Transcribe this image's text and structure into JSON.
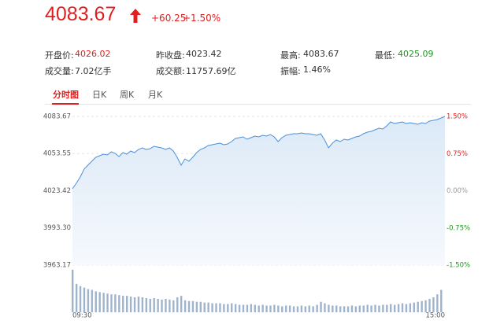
{
  "header": {
    "price": "4083.67",
    "change": "+60.25",
    "change_pct": "+1.50%",
    "stats": [
      {
        "label": "开盘价:",
        "value": "4026.02",
        "color": "#e02020"
      },
      {
        "label": "昨收盘:",
        "value": "4023.42",
        "color": "#333333"
      },
      {
        "label": "最高:",
        "value": "4083.67",
        "color": "#333333"
      },
      {
        "label": "最低:",
        "value": "4025.09",
        "color": "#1a9a1a"
      },
      {
        "label": "成交量:",
        "value": "7.02亿手",
        "color": "#333333"
      },
      {
        "label": "成交额:",
        "value": "11757.69亿",
        "color": "#333333"
      },
      {
        "label": "振幅:",
        "value": "1.46%",
        "color": "#333333"
      }
    ],
    "tabs": [
      "分时图",
      "日K",
      "周K",
      "月K"
    ]
  },
  "chart_data": {
    "type": "line",
    "series": [
      {
        "color": "#4a90d9",
        "values": [
          4025.01,
          4029.47,
          4034.57,
          4040.95,
          4044.14,
          4047.33,
          4050.51,
          4051.79,
          4053.07,
          4052.43,
          4054.98,
          4053.7,
          4051.15,
          4054.34,
          4053.07,
          4055.62,
          4054.34,
          4056.89,
          4058.17,
          4056.89,
          4057.53,
          4059.44,
          4058.8,
          4058.17,
          4056.89,
          4058.17,
          4055.62,
          4050.51,
          4044.14,
          4049.24,
          4047.33,
          4050.51,
          4054.34,
          4056.89,
          4058.17,
          4060.08,
          4060.72,
          4061.35,
          4061.99,
          4060.72,
          4061.35,
          4063.27,
          4065.82,
          4066.45,
          4067.09,
          4065.18,
          4066.45,
          4067.73,
          4067.09,
          4068.37,
          4067.73,
          4069.01,
          4067.09,
          4063.27,
          4066.45,
          4068.37,
          4069.01,
          4069.64,
          4069.64,
          4070.28,
          4069.64,
          4069.64,
          4069.01,
          4068.37,
          4069.64,
          4064.54,
          4058.17,
          4061.99,
          4064.54,
          4063.27,
          4065.18,
          4064.54,
          4065.82,
          4067.09,
          4067.73,
          4069.64,
          4070.92,
          4071.56,
          4072.83,
          4074.11,
          4073.47,
          4076.02,
          4079.21,
          4077.93,
          4078.57,
          4079.21,
          4077.93,
          4078.57,
          4077.93,
          4077.29,
          4078.57,
          4077.93,
          4079.84,
          4080.48,
          4081.12,
          4082.39,
          4083.67
        ]
      }
    ],
    "xticks": [
      {
        "value": 0,
        "label": "09:30"
      },
      {
        "value": 96,
        "label": "15:00"
      }
    ],
    "xlim": [
      0,
      96
    ],
    "ylim": [
      3963.17,
      4083.67
    ],
    "yticks": [
      {
        "value": 3963.17,
        "label": "3963.17"
      },
      {
        "value": 3993.3,
        "label": "3993.30"
      },
      {
        "value": 4023.42,
        "label": "4023.42"
      },
      {
        "value": 4053.55,
        "label": "4053.55"
      },
      {
        "value": 4083.67,
        "label": "4083.67"
      }
    ],
    "y2lim": [
      -1.5,
      1.5
    ],
    "y2ticks": [
      {
        "value": -1.5,
        "label": "-1.50%"
      },
      {
        "value": -0.75,
        "label": "-0.75%"
      },
      {
        "value": 0,
        "label": "0.00%"
      },
      {
        "value": 0.75,
        "label": "0.75%"
      },
      {
        "value": 1.5,
        "label": "1.50%"
      }
    ],
    "y2tick_colors": [
      "#1a9a1a",
      "#1a9a1a",
      "#999999",
      "#e02020",
      "#e02020"
    ],
    "grid": true,
    "volume": {
      "color": "#9fb4cc",
      "ylim": [
        0,
        60
      ],
      "values": [
        57,
        38,
        35,
        33,
        31,
        30,
        28,
        27,
        26,
        25,
        24,
        24,
        23,
        22,
        22,
        21,
        20,
        21,
        20,
        19,
        18,
        19,
        18,
        17,
        18,
        17,
        16,
        20,
        22,
        16,
        15,
        15,
        14,
        14,
        13,
        13,
        12,
        12,
        12,
        11,
        11,
        12,
        11,
        10,
        10,
        10,
        11,
        10,
        9,
        10,
        9,
        9,
        10,
        9,
        8,
        9,
        9,
        8,
        8,
        9,
        8,
        9,
        8,
        10,
        14,
        12,
        10,
        9,
        9,
        8,
        8,
        8,
        9,
        8,
        9,
        9,
        10,
        9,
        10,
        9,
        10,
        10,
        11,
        10,
        11,
        12,
        11,
        12,
        13,
        14,
        15,
        16,
        18,
        20,
        24,
        30
      ]
    }
  }
}
